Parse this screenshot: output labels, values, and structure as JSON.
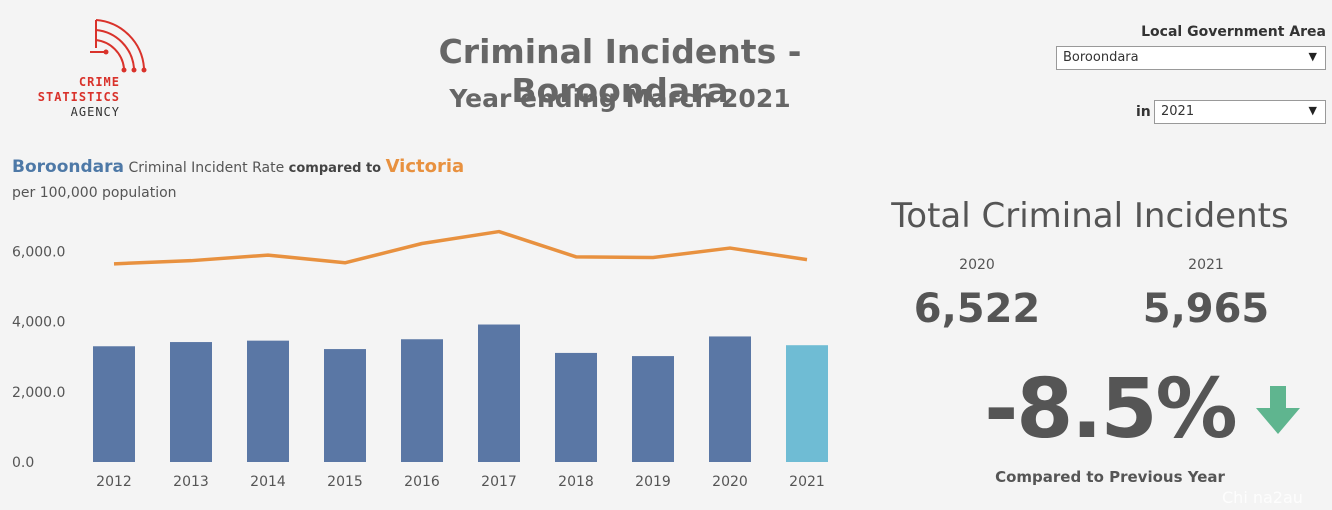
{
  "logo": {
    "line1": "CRIME",
    "line2": "STATISTICS",
    "line3": "AGENCY"
  },
  "header": {
    "title": "Criminal Incidents - Boroondara",
    "subtitle": "Year ending March 2021"
  },
  "filters": {
    "lga_label": "Local Government Area",
    "lga_value": "Boroondara",
    "year_label": "in",
    "year_value": "2021"
  },
  "chart_heading": {
    "area": "Boroondara",
    "text1": "Criminal Incident Rate",
    "text2": "compared to",
    "compare": "Victoria",
    "sub": "per 100,000 population"
  },
  "colors": {
    "bar": "#5a77a5",
    "bar_selected": "#6fbcd4",
    "line": "#e8913f",
    "arrow": "#5fb58f"
  },
  "chart_data": {
    "type": "bar",
    "categories": [
      "2012",
      "2013",
      "2014",
      "2015",
      "2016",
      "2017",
      "2018",
      "2019",
      "2020",
      "2021"
    ],
    "series": [
      {
        "name": "Boroondara",
        "type": "bar",
        "values": [
          3300,
          3420,
          3460,
          3220,
          3500,
          3920,
          3110,
          3020,
          3580,
          3330
        ]
      },
      {
        "name": "Victoria",
        "type": "line",
        "values": [
          5650,
          5740,
          5900,
          5680,
          6230,
          6570,
          5850,
          5830,
          6100,
          5770
        ]
      }
    ],
    "highlight_category": "2021",
    "yticks": [
      "6,000.0",
      "4,000.0",
      "2,000.0",
      "0.0"
    ],
    "ytick_values": [
      6000,
      4000,
      2000,
      0
    ],
    "ylim": [
      0,
      6900
    ],
    "grid": false
  },
  "kpi": {
    "title": "Total Criminal Incidents",
    "prev_year": "2020",
    "prev_value": "6,522",
    "curr_year": "2021",
    "curr_value": "5,965",
    "change": "-8.5%",
    "change_note": "Compared to Previous Year",
    "direction_icon": "arrow-down-icon"
  },
  "watermark": "Chi na2au"
}
